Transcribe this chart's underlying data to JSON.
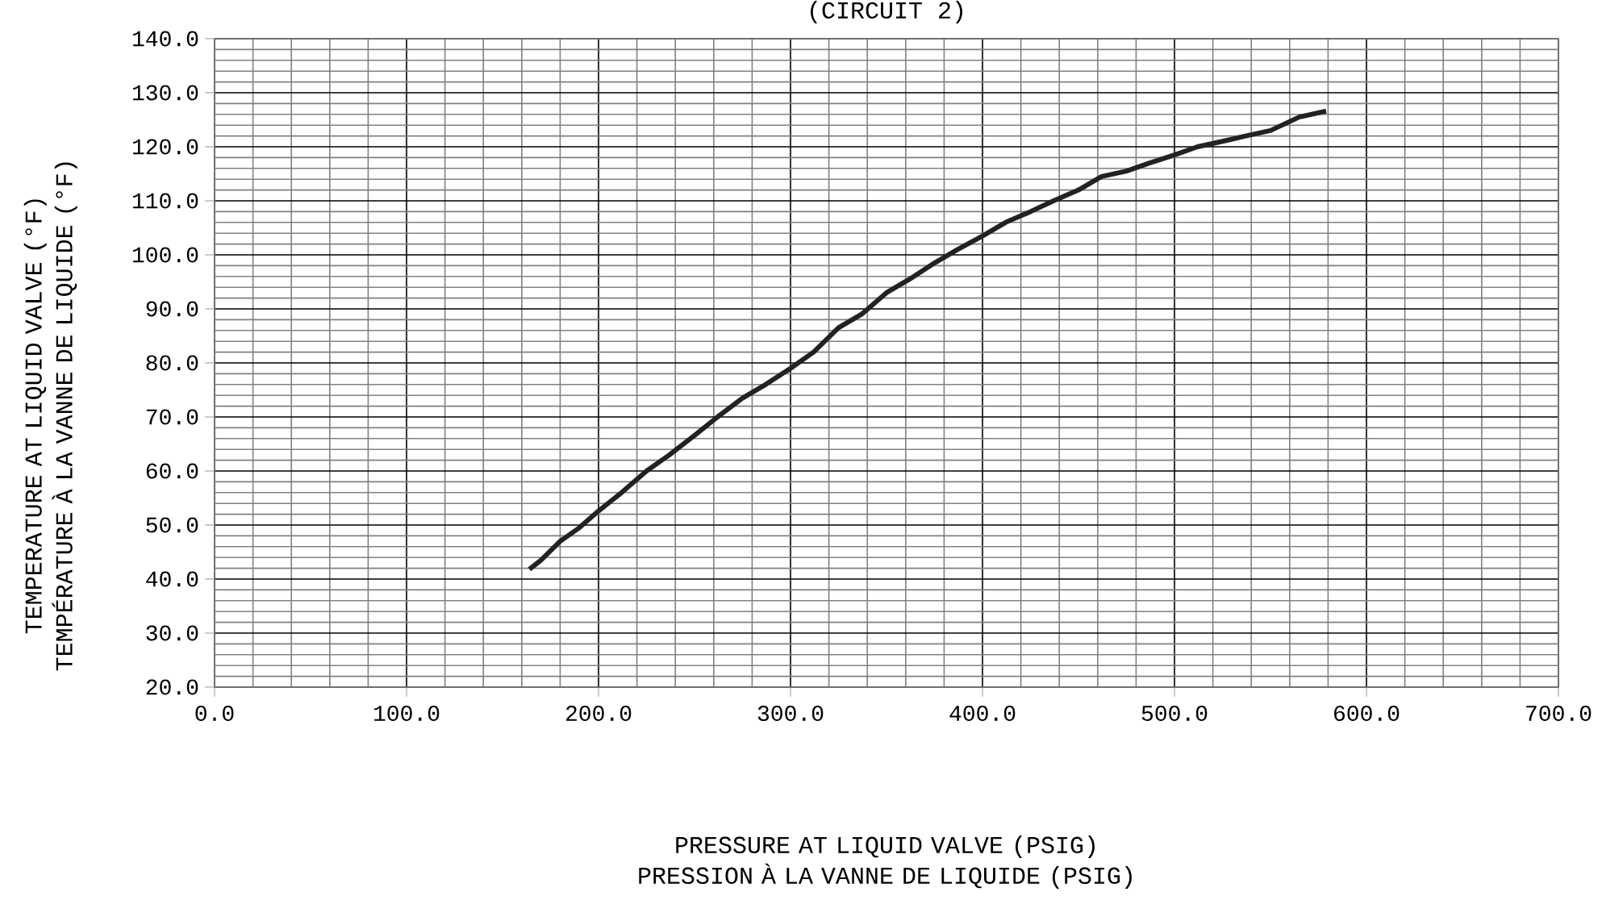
{
  "chart_data": {
    "type": "line",
    "title": "(CIRCUIT 2)",
    "xlabel": "PRESSURE AT LIQUID VALVE (PSIG) PRESSION À LA VANNE DE LIQUIDE (PSIG)",
    "ylabel": "TEMPERATURE AT LIQUID VALVE (°F) TEMPÉRATURE À LA VANNE DE LIQUIDE (°F)",
    "xlim": [
      0,
      700
    ],
    "ylim": [
      20,
      140
    ],
    "xticks": [
      {
        "value": 0,
        "label": "0.0"
      },
      {
        "value": 100,
        "label": "100.0"
      },
      {
        "value": 200,
        "label": "200.0"
      },
      {
        "value": 300,
        "label": "300.0"
      },
      {
        "value": 400,
        "label": "400.0"
      },
      {
        "value": 500,
        "label": "500.0"
      },
      {
        "value": 600,
        "label": "600.0"
      },
      {
        "value": 700,
        "label": "700.0"
      }
    ],
    "yticks": [
      {
        "value": 20,
        "label": "20.0"
      },
      {
        "value": 30,
        "label": "30.0"
      },
      {
        "value": 40,
        "label": "40.0"
      },
      {
        "value": 50,
        "label": "50.0"
      },
      {
        "value": 60,
        "label": "60.0"
      },
      {
        "value": 70,
        "label": "70.0"
      },
      {
        "value": 80,
        "label": "80.0"
      },
      {
        "value": 90,
        "label": "90.0"
      },
      {
        "value": 100,
        "label": "100.0"
      },
      {
        "value": 110,
        "label": "110.0"
      },
      {
        "value": 120,
        "label": "120.0"
      },
      {
        "value": 130,
        "label": "130.0"
      },
      {
        "value": 140,
        "label": "140.0"
      }
    ],
    "grid": true,
    "series": [
      {
        "color": "#222222",
        "x": [
          164,
          170,
          180,
          190,
          200,
          212,
          225,
          237,
          250,
          262,
          275,
          287,
          300,
          312,
          325,
          337,
          350,
          362,
          375,
          387,
          400,
          412,
          425,
          437,
          450,
          462,
          475,
          487,
          500,
          512,
          525,
          537,
          550,
          565,
          579
        ],
        "values": [
          41.8,
          43.5,
          47,
          49.5,
          52.6,
          56,
          60,
          63,
          66.6,
          70,
          73.5,
          76,
          79,
          82,
          86.5,
          89,
          93,
          95.5,
          98.5,
          101,
          103.5,
          106,
          108,
          110,
          112,
          114.5,
          115.5,
          117,
          118.5,
          120,
          121,
          122,
          123,
          125.5,
          126.6
        ]
      }
    ]
  }
}
